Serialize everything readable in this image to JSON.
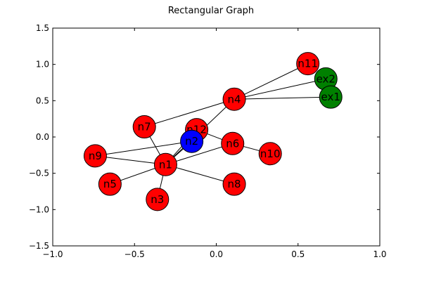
{
  "chart_data": {
    "type": "network",
    "title": "Rectangular Graph",
    "xlim": [
      -1.0,
      1.0
    ],
    "ylim": [
      -1.5,
      1.5
    ],
    "x_ticks": [
      -1.0,
      -0.5,
      0.0,
      0.5,
      1.0
    ],
    "x_tick_labels": [
      "−1.0",
      "−0.5",
      "0.0",
      "0.5",
      "1.0"
    ],
    "y_ticks": [
      1.5,
      1.0,
      0.5,
      0.0,
      -0.5,
      -1.0,
      -1.5
    ],
    "y_tick_labels": [
      "1.5",
      "1.0",
      "0.5",
      "0.0",
      "−0.5",
      "−1.0",
      "−1.5"
    ],
    "grid": false,
    "nodes": [
      {
        "id": "n11",
        "x": 0.56,
        "y": 1.01,
        "color": "#ff0000"
      },
      {
        "id": "ex2",
        "x": 0.67,
        "y": 0.8,
        "color": "#008000"
      },
      {
        "id": "ex1",
        "x": 0.7,
        "y": 0.55,
        "color": "#008000"
      },
      {
        "id": "n4",
        "x": 0.11,
        "y": 0.52,
        "color": "#ff0000"
      },
      {
        "id": "n7",
        "x": -0.44,
        "y": 0.14,
        "color": "#ff0000"
      },
      {
        "id": "n12",
        "x": -0.12,
        "y": 0.1,
        "color": "#ff0000"
      },
      {
        "id": "n2",
        "x": -0.15,
        "y": -0.06,
        "color": "#0000ff"
      },
      {
        "id": "n6",
        "x": 0.1,
        "y": -0.09,
        "color": "#ff0000"
      },
      {
        "id": "n10",
        "x": 0.33,
        "y": -0.23,
        "color": "#ff0000"
      },
      {
        "id": "n9",
        "x": -0.74,
        "y": -0.26,
        "color": "#ff0000"
      },
      {
        "id": "n1",
        "x": -0.31,
        "y": -0.38,
        "color": "#ff0000"
      },
      {
        "id": "n5",
        "x": -0.65,
        "y": -0.65,
        "color": "#ff0000"
      },
      {
        "id": "n8",
        "x": 0.11,
        "y": -0.65,
        "color": "#ff0000"
      },
      {
        "id": "n3",
        "x": -0.36,
        "y": -0.86,
        "color": "#ff0000"
      }
    ],
    "edges": [
      [
        "n4",
        "n11"
      ],
      [
        "n4",
        "ex2"
      ],
      [
        "n4",
        "ex1"
      ],
      [
        "n4",
        "n7"
      ],
      [
        "n4",
        "n1"
      ],
      [
        "n12",
        "n6"
      ],
      [
        "n12",
        "n1"
      ],
      [
        "n2",
        "n9"
      ],
      [
        "n2",
        "n1"
      ],
      [
        "n6",
        "n10"
      ],
      [
        "n6",
        "n1"
      ],
      [
        "n9",
        "n1"
      ],
      [
        "n1",
        "n5"
      ],
      [
        "n1",
        "n3"
      ],
      [
        "n1",
        "n8"
      ],
      [
        "n1",
        "n7"
      ]
    ]
  }
}
